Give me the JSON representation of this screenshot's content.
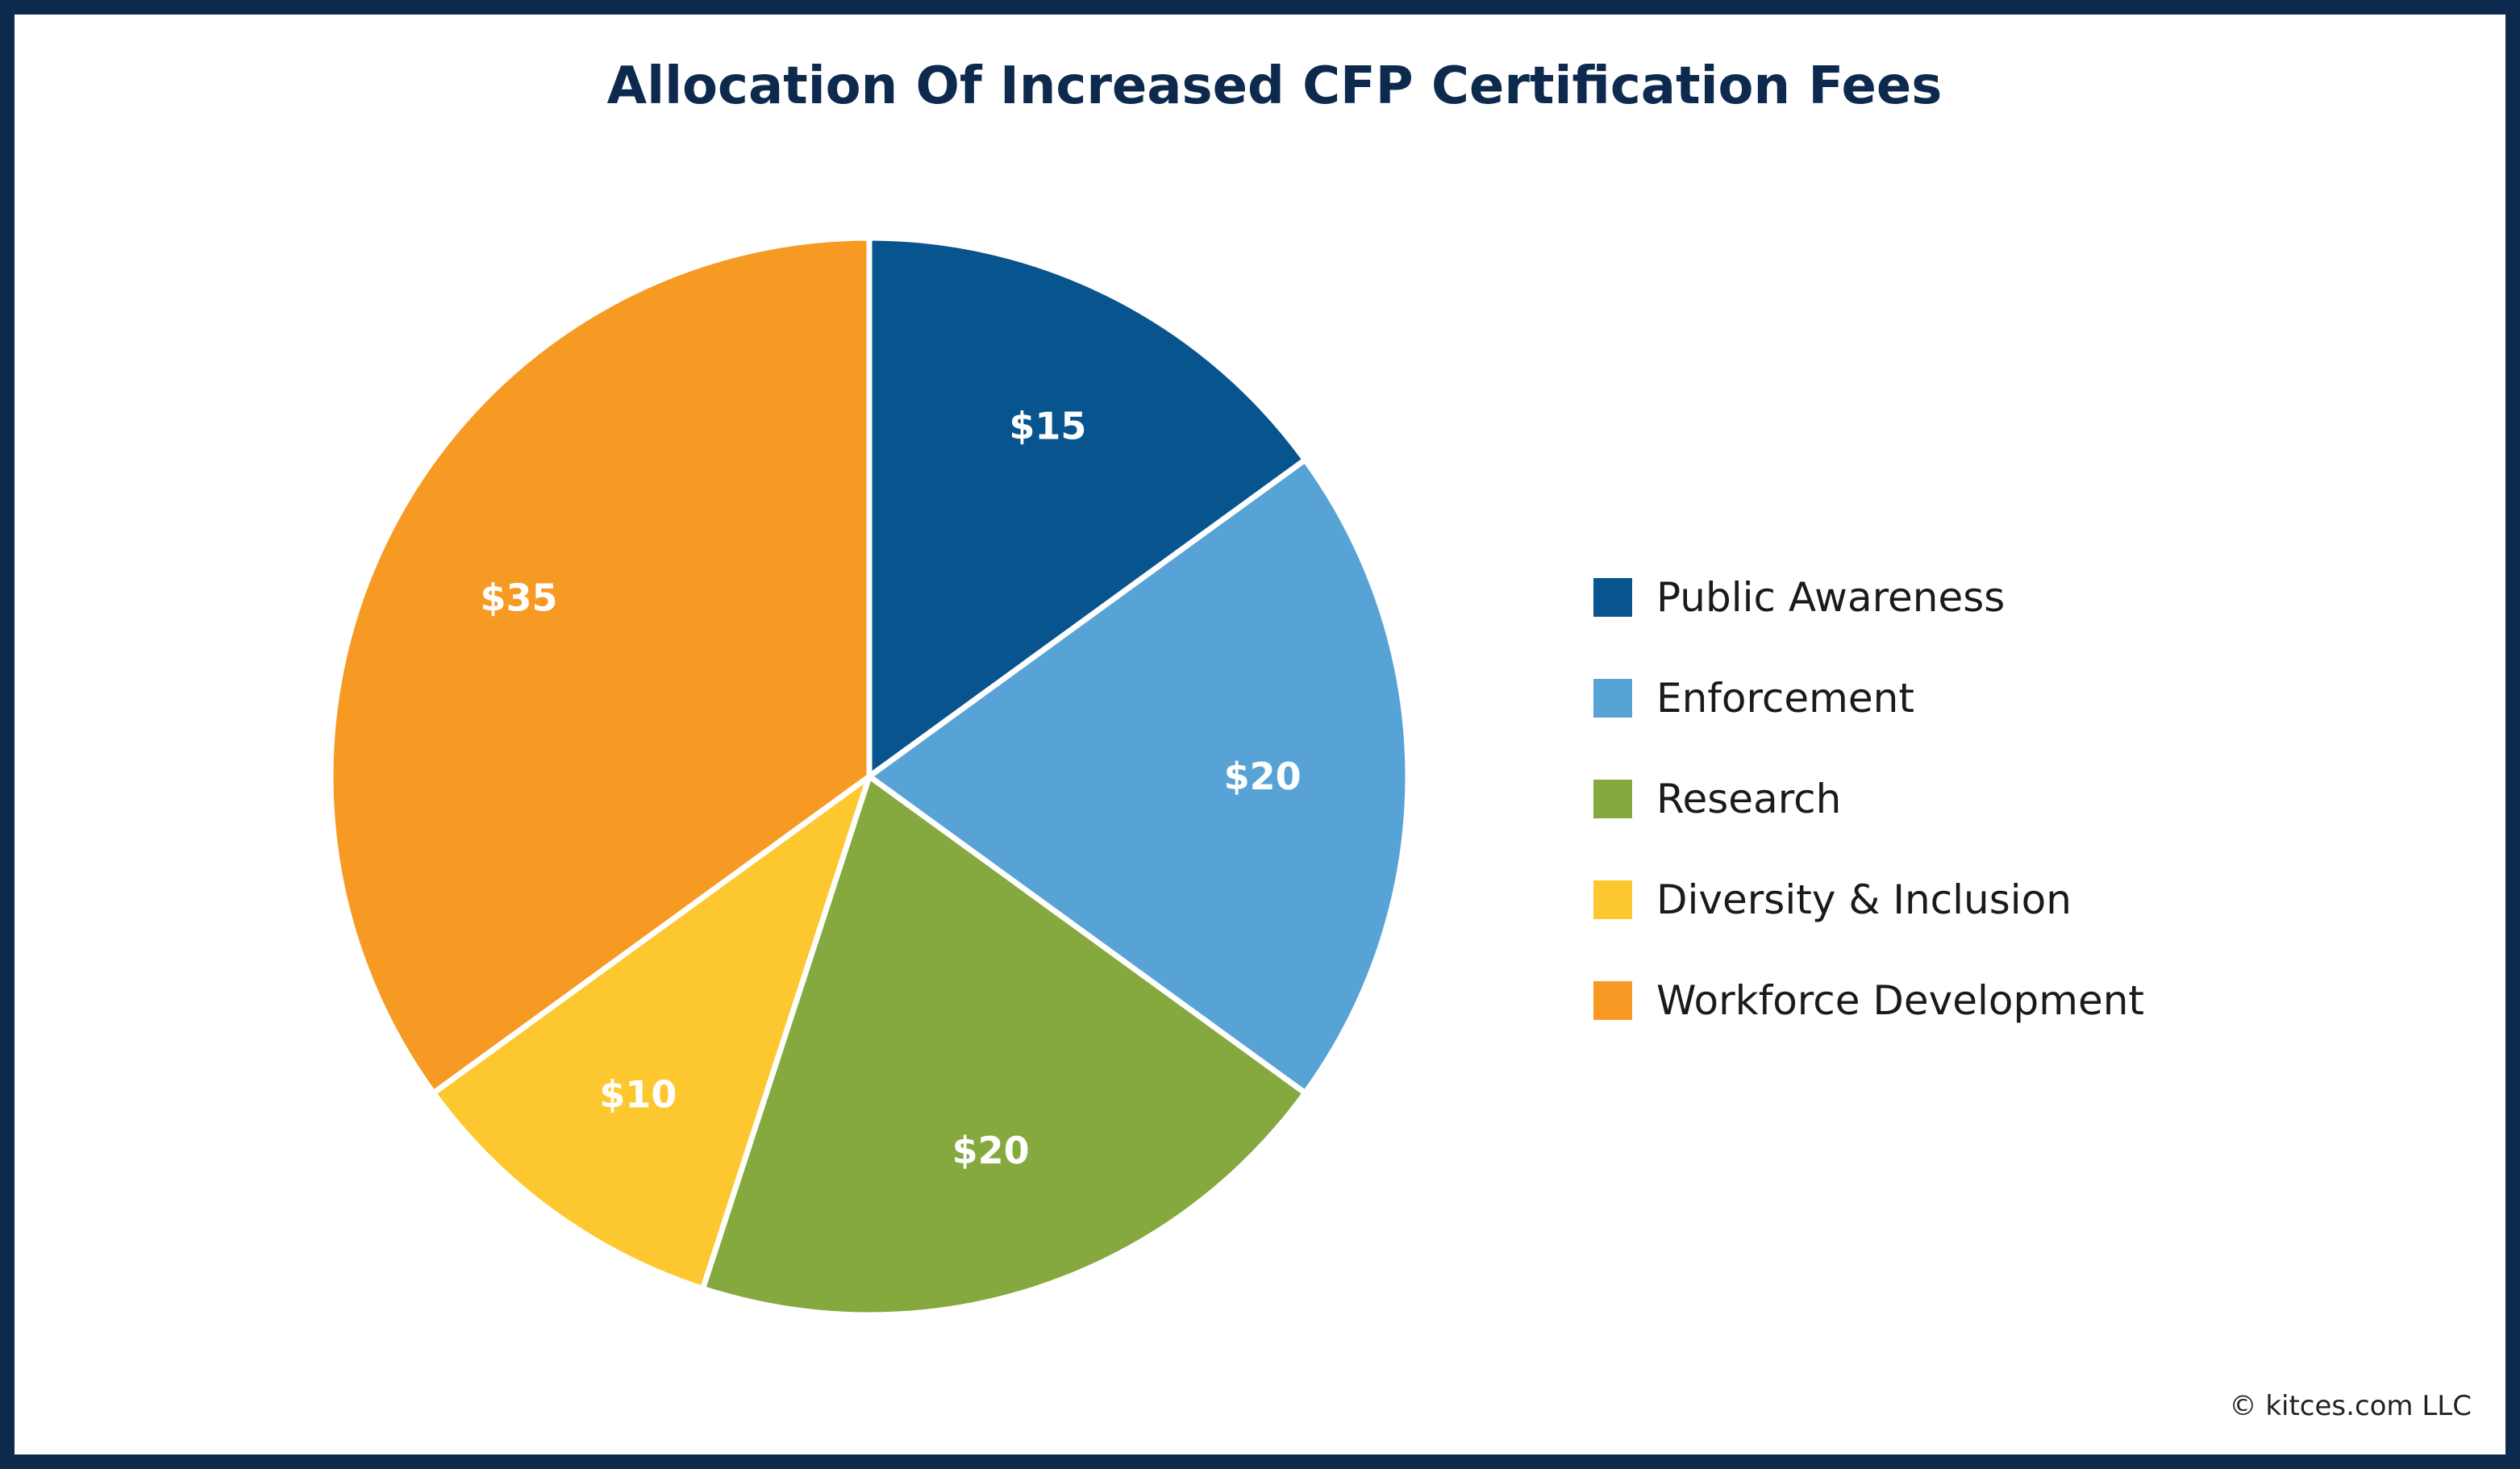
{
  "chart_data": {
    "type": "pie",
    "title": "Allocation Of Increased CFP Certification Fees",
    "categories": [
      "Public Awareness",
      "Enforcement",
      "Research",
      "Diversity & Inclusion",
      "Workforce Development"
    ],
    "values": [
      15,
      20,
      20,
      10,
      35
    ],
    "value_labels": [
      "$15",
      "$20",
      "$20",
      "$10",
      "$35"
    ],
    "colors": [
      "#07548f",
      "#58a3d6",
      "#85a83f",
      "#fdc82f",
      "#f79a24"
    ],
    "start": "12 o'clock, clockwise",
    "legend_placement": "right"
  },
  "credit": "© kitces.com LLC"
}
